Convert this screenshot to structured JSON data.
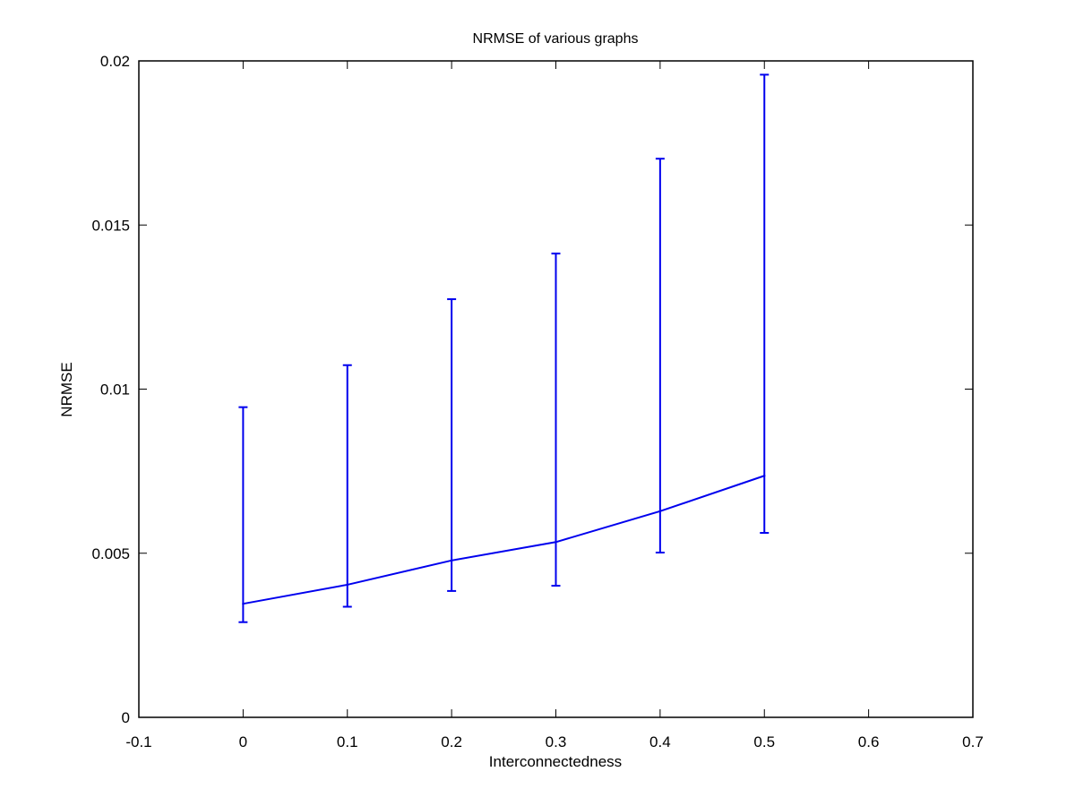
{
  "chart_data": {
    "type": "line",
    "title": "NRMSE of various graphs",
    "xlabel": "Interconnectedness",
    "ylabel": "NRMSE",
    "xlim": [
      -0.1,
      0.7
    ],
    "ylim": [
      0,
      0.02
    ],
    "xticks": [
      "-0.1",
      "0",
      "0.1",
      "0.2",
      "0.3",
      "0.4",
      "0.5",
      "0.6",
      "0.7"
    ],
    "yticks": [
      "0",
      "0.005",
      "0.01",
      "0.015",
      "0.02"
    ],
    "grid": false,
    "legend": "none",
    "series": [
      {
        "color": "#0000ee",
        "x": [
          0,
          0.1,
          0.2,
          0.3,
          0.4,
          0.5
        ],
        "y": [
          0.00346,
          0.00404,
          0.00478,
          0.00534,
          0.00628,
          0.00736
        ],
        "err_low": [
          0.0029,
          0.00337,
          0.00385,
          0.00401,
          0.00502,
          0.00562
        ],
        "err_high": [
          0.00945,
          0.01073,
          0.01274,
          0.01413,
          0.01702,
          0.01958
        ]
      }
    ]
  }
}
